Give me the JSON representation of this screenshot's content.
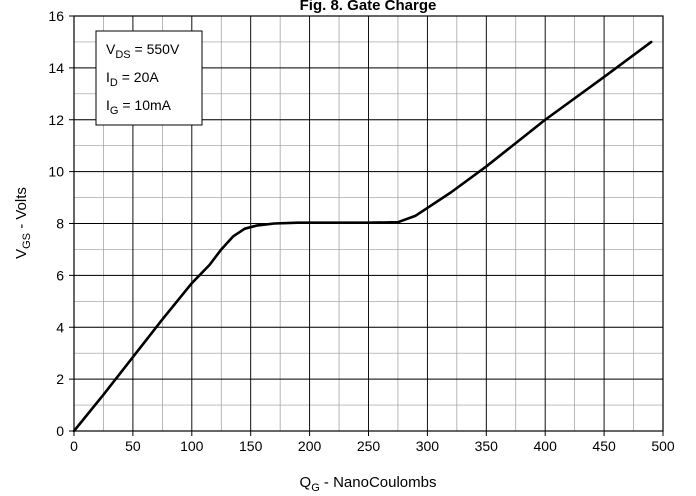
{
  "chart_data": {
    "type": "line",
    "title": "Fig. 8. Gate Charge",
    "xlabel": {
      "main": "Q",
      "sub": "G",
      "rest": " - NanoCoulombs"
    },
    "ylabel": {
      "main": "V",
      "sub": "GS",
      "rest": " - Volts"
    },
    "xlim": [
      0,
      500
    ],
    "ylim": [
      0,
      16
    ],
    "x_major_ticks": [
      0,
      50,
      100,
      150,
      200,
      250,
      300,
      350,
      400,
      450,
      500
    ],
    "x_tick_labels": [
      "0",
      "50",
      "100",
      "150",
      "200",
      "250",
      "300",
      "350",
      "400",
      "450",
      "500"
    ],
    "y_major_ticks": [
      0,
      2,
      4,
      6,
      8,
      10,
      12,
      14,
      16
    ],
    "y_tick_labels": [
      "0",
      "2",
      "4",
      "6",
      "8",
      "10",
      "12",
      "14",
      "16"
    ],
    "x_minor_step": 25,
    "y_minor_step": 1,
    "grid": true,
    "legend_position": "top-left",
    "conditions": [
      {
        "main": "V",
        "sub": "DS",
        "rest": " = 550V"
      },
      {
        "main": "I",
        "sub": "D",
        "rest": " = 20A"
      },
      {
        "main": "I",
        "sub": "G",
        "rest": " = 10mA"
      }
    ],
    "series": [
      {
        "color": "#000000",
        "x": [
          0,
          25,
          50,
          75,
          100,
          115,
          125,
          135,
          145,
          155,
          170,
          190,
          220,
          250,
          275,
          290,
          300,
          320,
          350,
          400,
          450,
          490
        ],
        "y": [
          0,
          1.4,
          2.85,
          4.3,
          5.7,
          6.4,
          7.0,
          7.5,
          7.8,
          7.92,
          8.0,
          8.03,
          8.03,
          8.03,
          8.05,
          8.3,
          8.6,
          9.2,
          10.2,
          12.0,
          13.65,
          15.0
        ]
      }
    ]
  }
}
